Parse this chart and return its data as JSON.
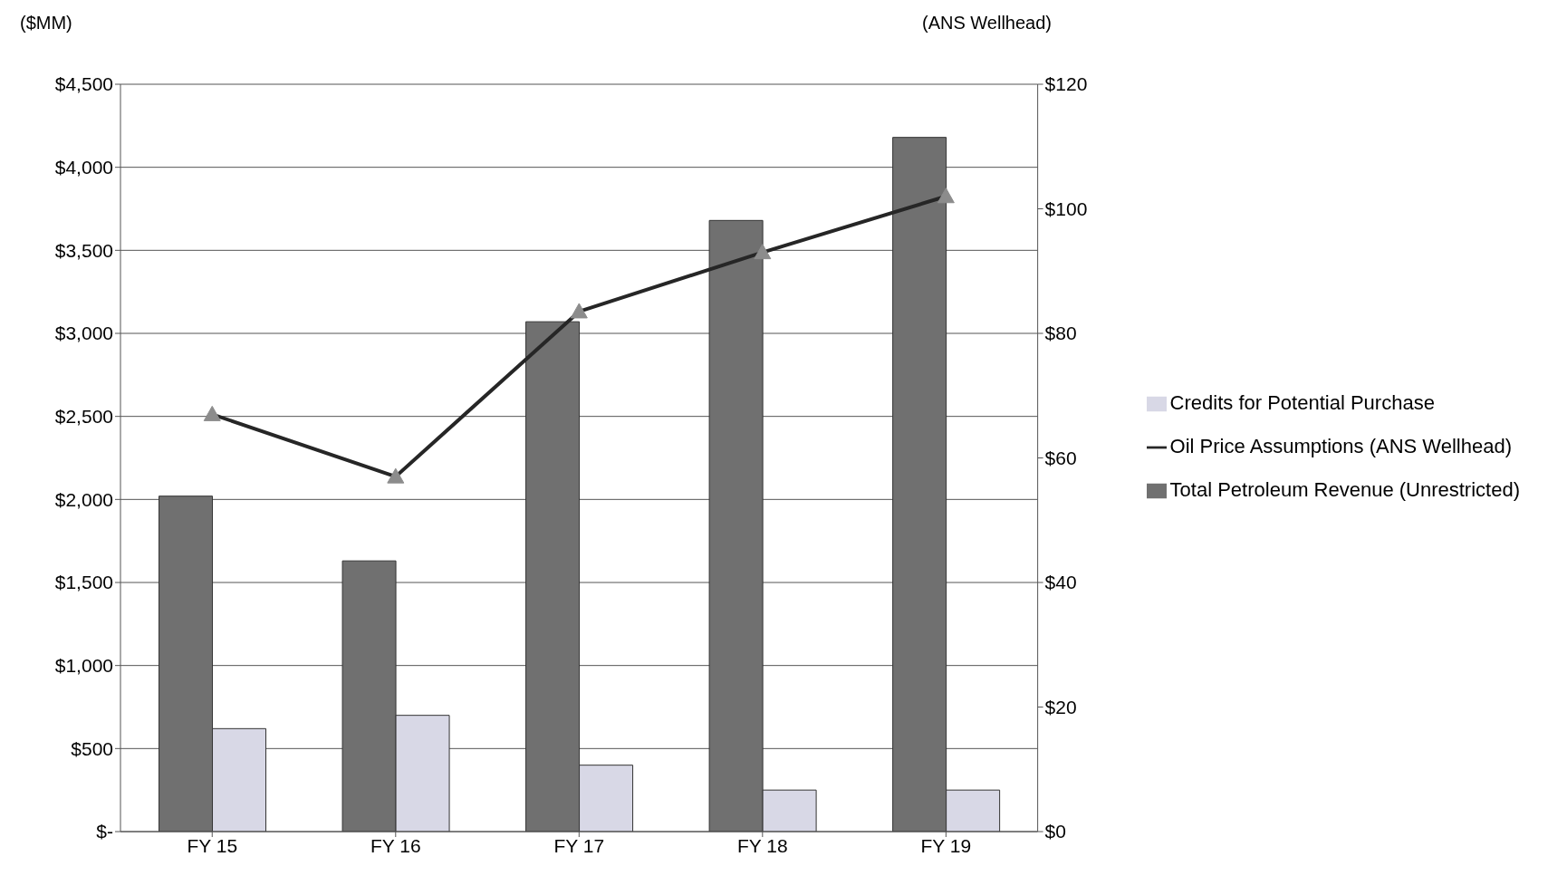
{
  "chart_data": {
    "type": "bar",
    "ylabel": "($MM)",
    "y2label": "(ANS Wellhead)",
    "categories": [
      "FY 15",
      "FY 16",
      "FY 17",
      "FY 18",
      "FY 19"
    ],
    "series": [
      {
        "name": "Total Petroleum Revenue (Unrestricted)",
        "color": "#707070",
        "values": [
          2020,
          1630,
          3070,
          3680,
          4180
        ]
      },
      {
        "name": "Credits for Potential Purchase",
        "color": "#d8d8e6",
        "values": [
          620,
          700,
          400,
          250,
          250
        ]
      },
      {
        "name": "Oil Price Assumptions (ANS Wellhead)",
        "type": "line",
        "axis": "y2",
        "color": "#262626",
        "marker": "triangle",
        "values": [
          67,
          57,
          83.5,
          93,
          102
        ]
      }
    ],
    "ylim": [
      0,
      4500
    ],
    "yticks": [
      {
        "value": 0,
        "label": "$-"
      },
      {
        "value": 500,
        "label": "$500"
      },
      {
        "value": 1000,
        "label": "$1,000"
      },
      {
        "value": 1500,
        "label": "$1,500"
      },
      {
        "value": 2000,
        "label": "$2,000"
      },
      {
        "value": 2500,
        "label": "$2,500"
      },
      {
        "value": 3000,
        "label": "$3,000"
      },
      {
        "value": 3500,
        "label": "$3,500"
      },
      {
        "value": 4000,
        "label": "$4,000"
      },
      {
        "value": 4500,
        "label": "$4,500"
      }
    ],
    "y2lim": [
      0,
      120
    ],
    "y2ticks": [
      {
        "value": 0,
        "label": "$0"
      },
      {
        "value": 20,
        "label": "$20"
      },
      {
        "value": 40,
        "label": "$40"
      },
      {
        "value": 60,
        "label": "$60"
      },
      {
        "value": 80,
        "label": "$80"
      },
      {
        "value": 100,
        "label": "$100"
      },
      {
        "value": 120,
        "label": "$120"
      }
    ],
    "grid": "y",
    "legend": "right"
  }
}
